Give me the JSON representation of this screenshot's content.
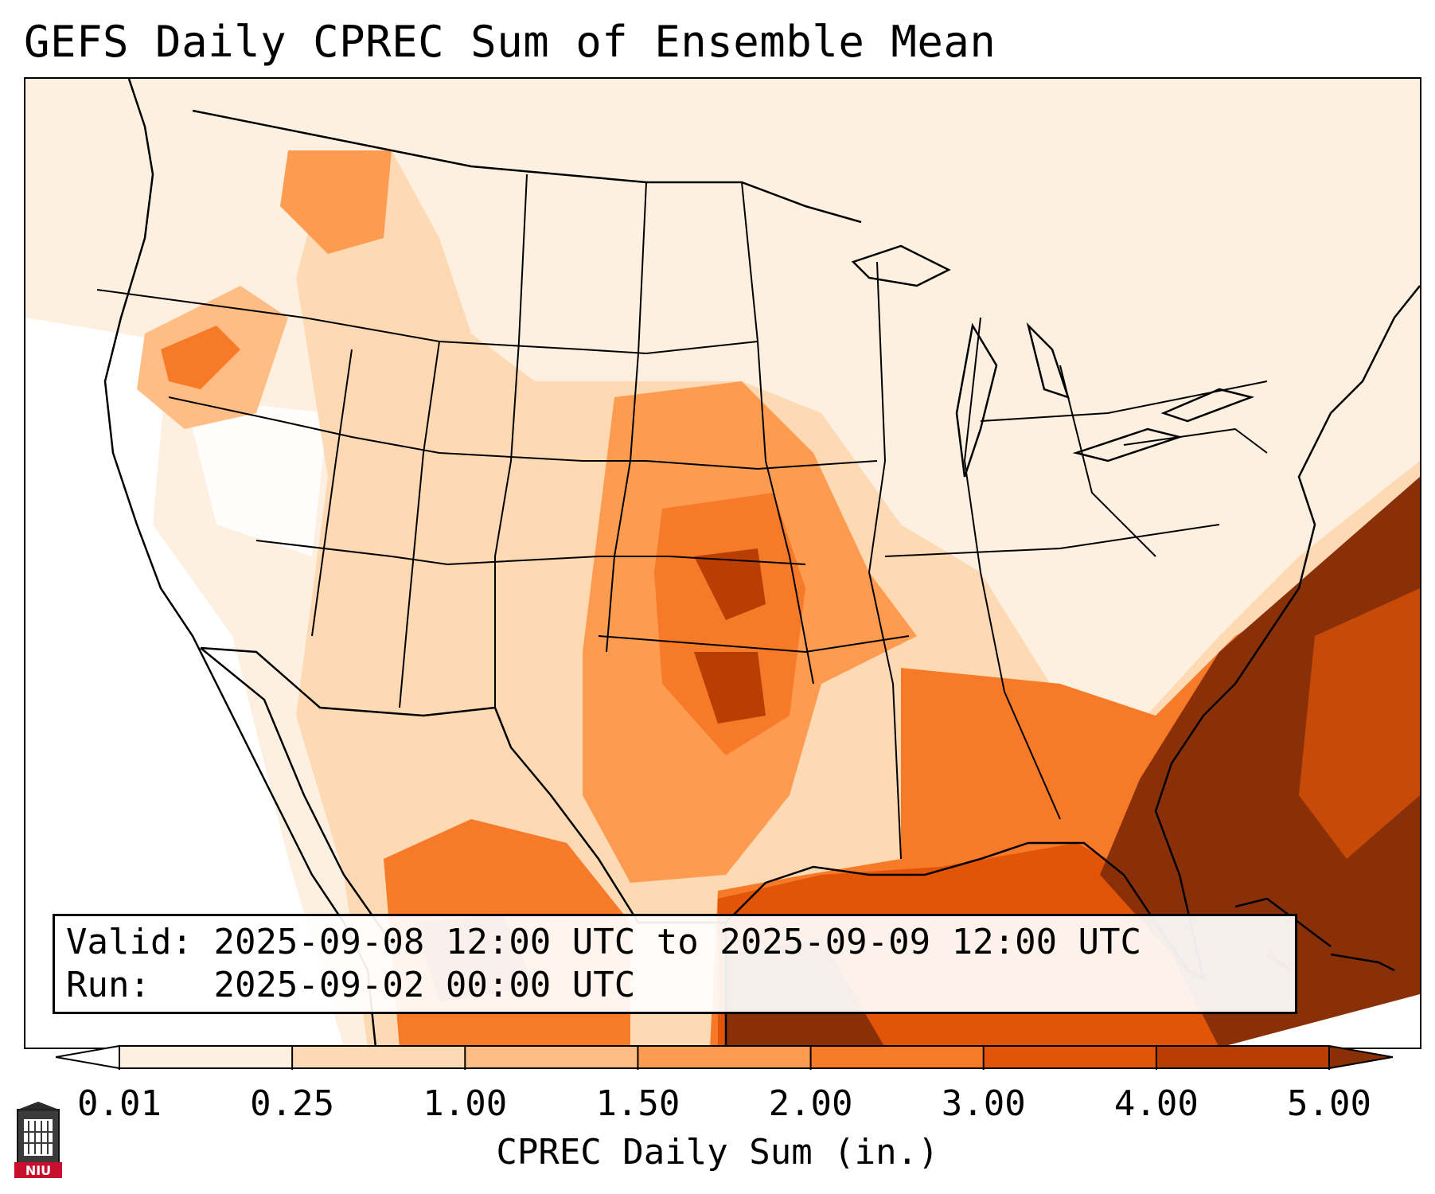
{
  "title": "GEFS Daily CPREC Sum of Ensemble Mean",
  "info": {
    "valid_label": "Valid:",
    "valid_value": "2025-09-08 12:00 UTC to 2025-09-09 12:00 UTC",
    "run_label": "Run:",
    "run_value": "2025-09-02 00:00 UTC"
  },
  "colorbar": {
    "label": "CPREC Daily Sum (in.)",
    "ticks": [
      "0.01",
      "0.25",
      "1.00",
      "1.50",
      "2.00",
      "3.00",
      "4.00",
      "5.00"
    ],
    "colors": [
      "#fef0e1",
      "#fdd9b4",
      "#fdbd84",
      "#fd9b51",
      "#f67a28",
      "#e25508",
      "#b93e03",
      "#8a3008"
    ],
    "under_color": "#ffffff",
    "over_color": "#8a3008"
  },
  "logo": {
    "text": "NIU",
    "icon": "university-tower-icon"
  },
  "regions": {
    "heavy_southeast_coast": "high",
    "gulf_of_mexico": "high",
    "kansas_oklahoma": "moderate",
    "pacific_northwest": "moderate",
    "california_desert": "none"
  }
}
